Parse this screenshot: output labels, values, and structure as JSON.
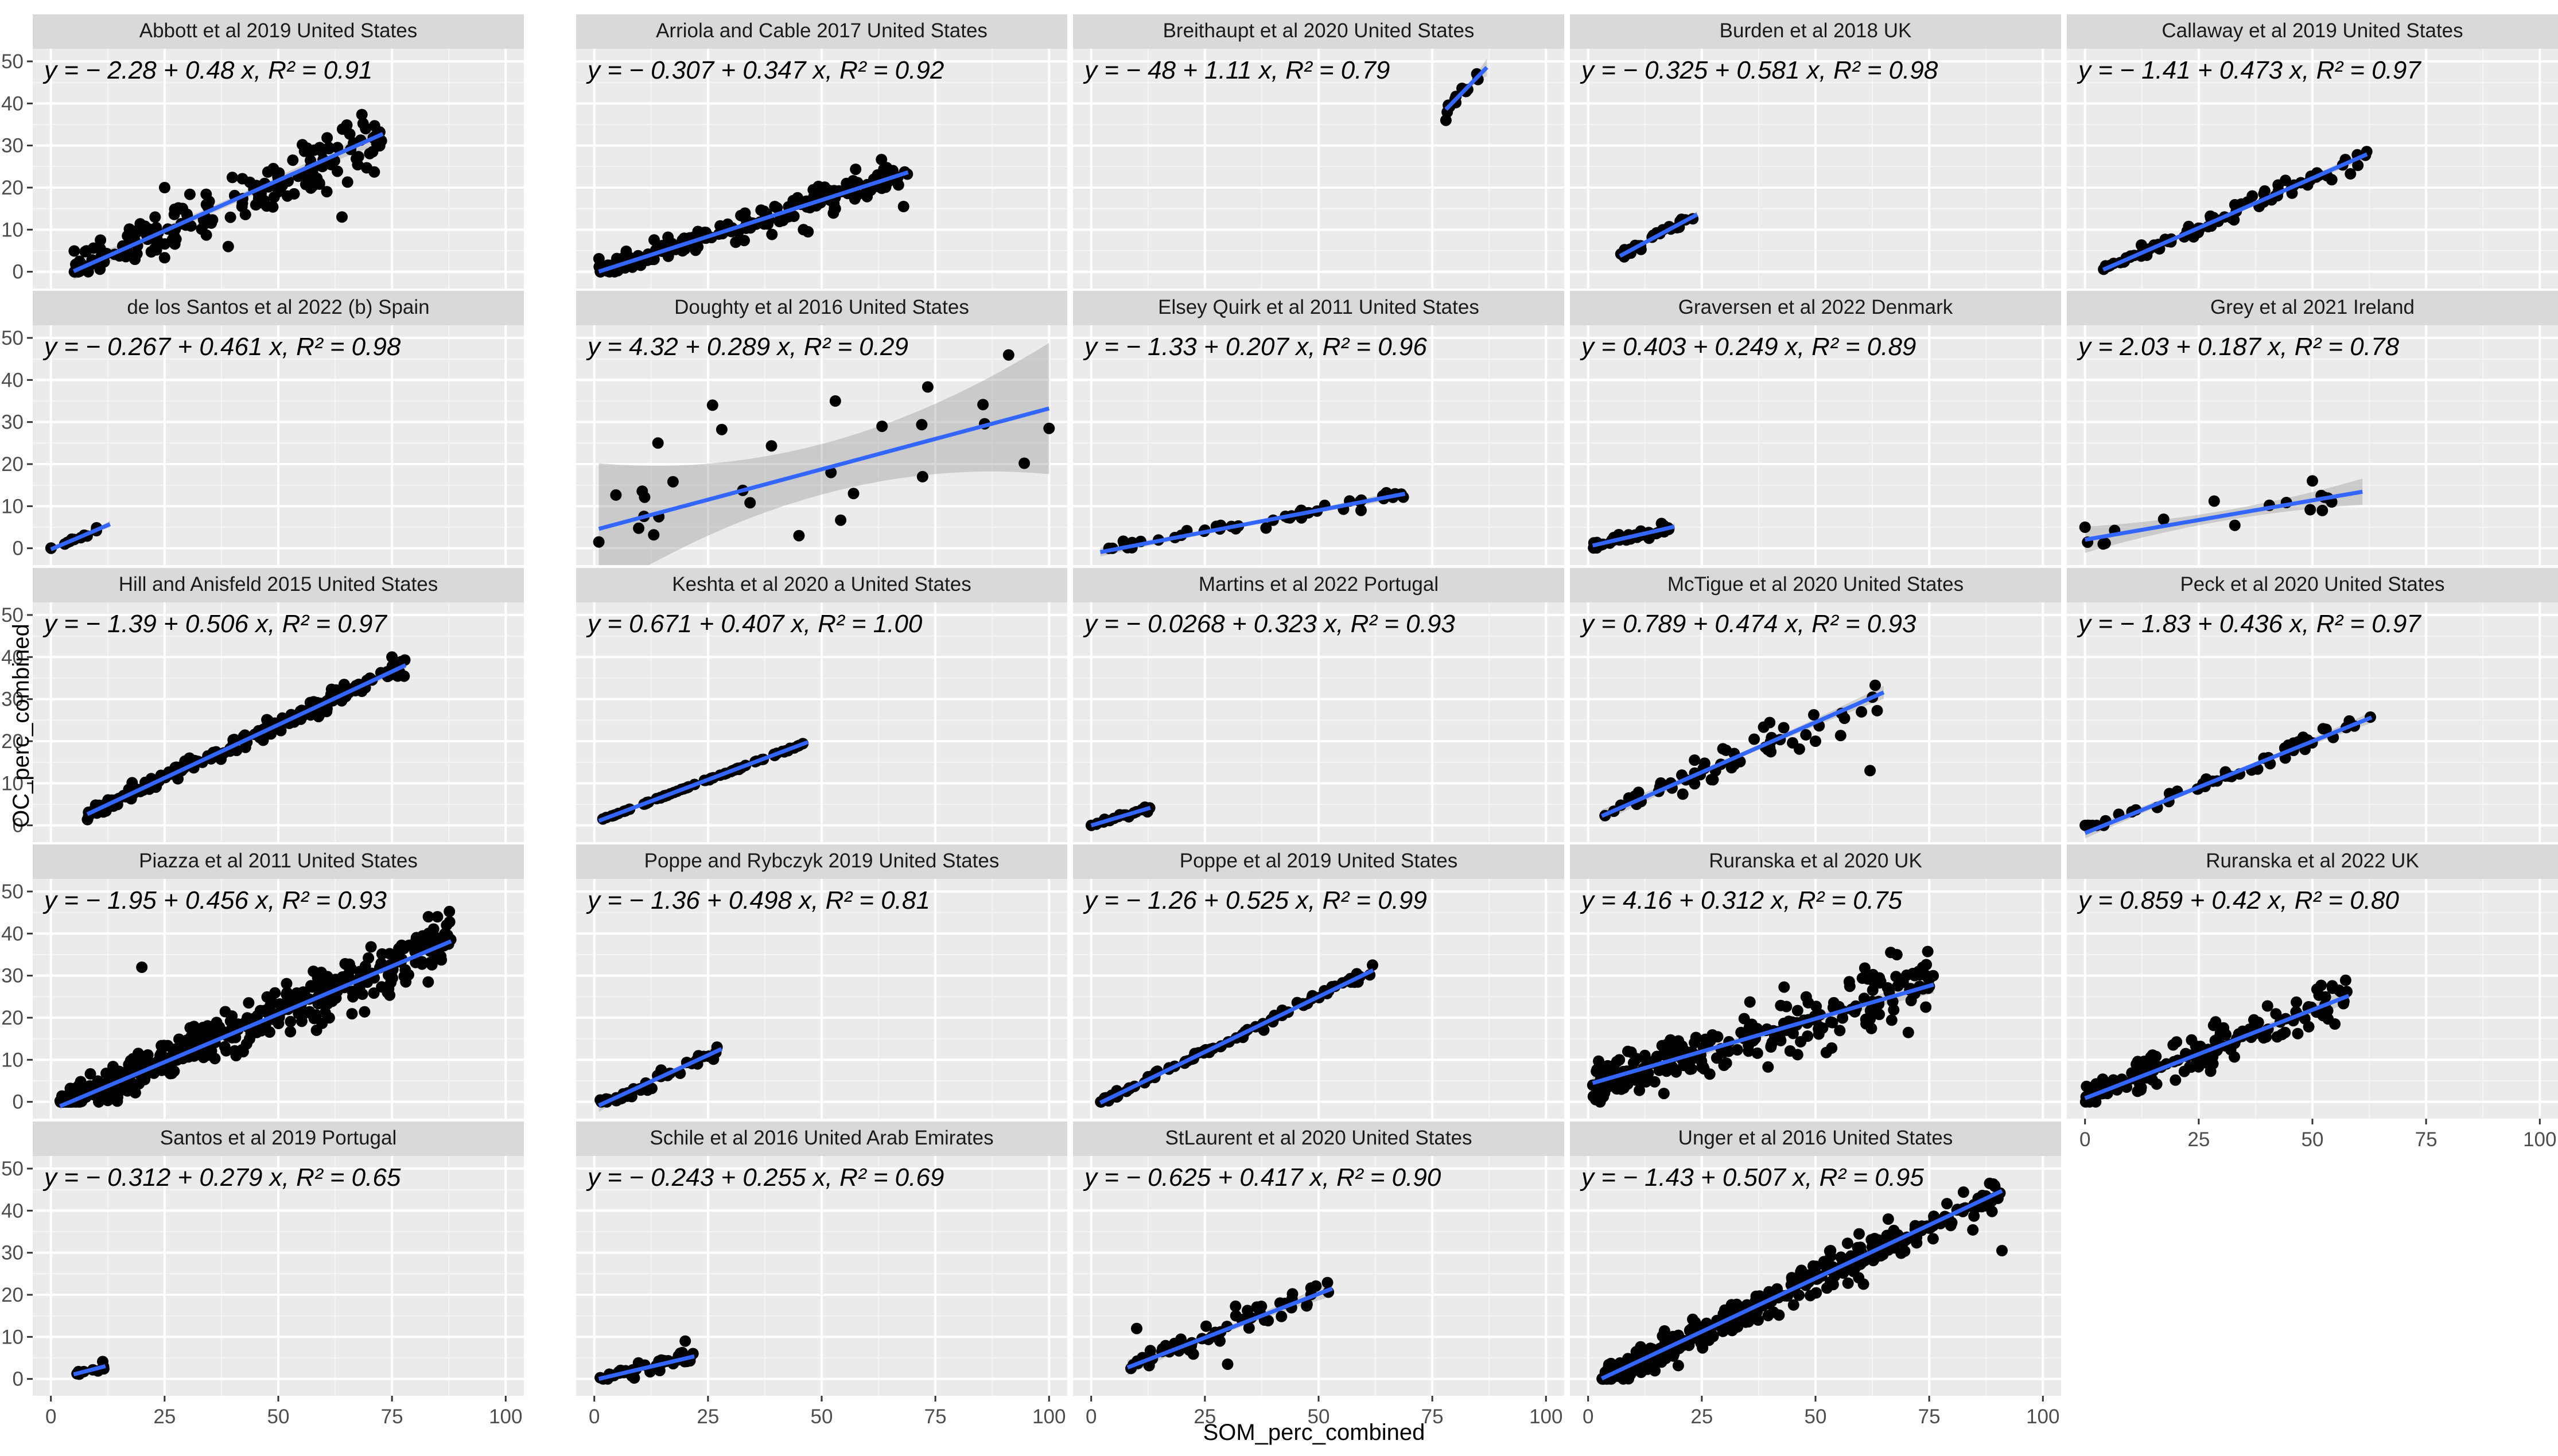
{
  "chart_data": {
    "type": "scatter",
    "xlabel": "SOM_perc_combined",
    "ylabel": "OC_perc_combined",
    "xlim": [
      -4,
      104
    ],
    "ylim": [
      -4,
      53
    ],
    "x_ticks": [
      0,
      25,
      50,
      75,
      100
    ],
    "y_ticks": [
      0,
      10,
      20,
      30,
      40,
      50
    ],
    "grid": true,
    "colors": {
      "panel": "#EBEBEB",
      "strip": "#D9D9D9",
      "grid_major": "#FFFFFF",
      "grid_minor": "#F5F5F5",
      "points": "#000000",
      "fit_line": "#3366FF",
      "ribbon": "#999999"
    },
    "panels": [
      {
        "title": "Abbott et al 2019 United States",
        "equation": "y = − 2.28 + 0.48 x, R² = 0.91",
        "intercept": -2.28,
        "slope": 0.48,
        "r2": 0.91,
        "x_range": [
          5,
          73
        ],
        "n_points": 180,
        "noise": 2.8,
        "band": 0.8,
        "outliers": [
          [
            47,
            21
          ],
          [
            64,
            13
          ],
          [
            39,
            6
          ],
          [
            52,
            18
          ],
          [
            22,
            8
          ],
          [
            25,
            20
          ]
        ]
      },
      {
        "title": "Arriola and Cable 2017 United States",
        "equation": "y = − 0.307 + 0.347 x, R² = 0.92",
        "intercept": -0.307,
        "slope": 0.347,
        "r2": 0.92,
        "x_range": [
          1,
          69
        ],
        "n_points": 180,
        "noise": 1.4,
        "band": 0.5,
        "outliers": [
          [
            68,
            15.5
          ],
          [
            53,
            15
          ],
          [
            46,
            10
          ],
          [
            47,
            9.5
          ]
        ]
      },
      {
        "title": "Breithaupt et al 2020 United States",
        "equation": "y = − 48 + 1.11 x, R² = 0.79",
        "intercept": -48,
        "slope": 1.11,
        "r2": 0.79,
        "x_range": [
          78,
          87
        ],
        "n_points": 10,
        "noise": 1.2,
        "band": 0.8,
        "outliers": [
          [
            78,
            36
          ],
          [
            80,
            41
          ]
        ]
      },
      {
        "title": "Burden et al 2018 UK",
        "equation": "y = − 0.325 + 0.581 x, R² = 0.98",
        "intercept": -0.325,
        "slope": 0.581,
        "r2": 0.98,
        "x_range": [
          7,
          24
        ],
        "n_points": 25,
        "noise": 0.5,
        "band": 0.3,
        "outliers": []
      },
      {
        "title": "Callaway et al 2019 United States",
        "equation": "y = − 1.41 + 0.473 x, R² = 0.97",
        "intercept": -1.41,
        "slope": 0.473,
        "r2": 0.97,
        "x_range": [
          4,
          62
        ],
        "n_points": 90,
        "noise": 0.9,
        "band": 0.4,
        "outliers": []
      },
      {
        "title": "de los Santos et al 2022 (b) Spain",
        "equation": "y = − 0.267 + 0.461 x, R² = 0.98",
        "intercept": -0.267,
        "slope": 0.461,
        "r2": 0.98,
        "x_range": [
          0,
          13
        ],
        "n_points": 15,
        "noise": 0.3,
        "band": 0.3,
        "outliers": []
      },
      {
        "title": "Doughty et al 2016 United States",
        "equation": "y = 4.32 + 0.289 x, R² = 0.29",
        "intercept": 4.32,
        "slope": 0.289,
        "r2": 0.29,
        "x_range": [
          1,
          100
        ],
        "n_points": 22,
        "noise": 8,
        "band": 6,
        "outliers": [
          [
            26,
            34
          ],
          [
            53,
            35
          ],
          [
            100,
            28.5
          ],
          [
            14,
            25
          ],
          [
            57,
            13
          ],
          [
            1,
            1.5
          ],
          [
            45,
            3
          ]
        ]
      },
      {
        "title": "Elsey Quirk et al 2011 United States",
        "equation": "y = − 1.33 + 0.207 x, R² = 0.96",
        "intercept": -1.33,
        "slope": 0.207,
        "r2": 0.96,
        "x_range": [
          2,
          69
        ],
        "n_points": 50,
        "noise": 0.6,
        "band": 0.4,
        "outliers": []
      },
      {
        "title": "Graversen et al 2022 Denmark",
        "equation": "y = 0.403 + 0.249 x, R² = 0.89",
        "intercept": 0.403,
        "slope": 0.249,
        "r2": 0.89,
        "x_range": [
          1,
          19
        ],
        "n_points": 40,
        "noise": 0.5,
        "band": 0.3,
        "outliers": []
      },
      {
        "title": "Grey et al 2021 Ireland",
        "equation": "y = 2.03 + 0.187 x, R² = 0.78",
        "intercept": 2.03,
        "slope": 0.187,
        "r2": 0.78,
        "x_range": [
          0,
          61
        ],
        "n_points": 14,
        "noise": 1.5,
        "band": 1.2,
        "outliers": [
          [
            50,
            16
          ],
          [
            0,
            5
          ],
          [
            4,
            1
          ]
        ]
      },
      {
        "title": "Hill and Anisfeld 2015 United States",
        "equation": "y = − 1.39 + 0.506 x, R² = 0.97",
        "intercept": -1.39,
        "slope": 0.506,
        "r2": 0.97,
        "x_range": [
          8,
          78
        ],
        "n_points": 200,
        "noise": 0.9,
        "band": 0.4,
        "outliers": [
          [
            75,
            40
          ]
        ]
      },
      {
        "title": "Keshta et al 2020 a United States",
        "equation": "y = 0.671 + 0.407 x, R² = 1.00",
        "intercept": 0.671,
        "slope": 0.407,
        "r2": 1.0,
        "x_range": [
          1,
          47
        ],
        "n_points": 70,
        "noise": 0.1,
        "band": 0.2,
        "outliers": []
      },
      {
        "title": "Martins et al 2022 Portugal",
        "equation": "y = − 0.0268 + 0.323 x, R² = 0.93",
        "intercept": -0.0268,
        "slope": 0.323,
        "r2": 0.93,
        "x_range": [
          0,
          13
        ],
        "n_points": 25,
        "noise": 0.3,
        "band": 0.3,
        "outliers": []
      },
      {
        "title": "McTigue et al 2020 United States",
        "equation": "y = 0.789 + 0.474 x, R² = 0.93",
        "intercept": 0.789,
        "slope": 0.474,
        "r2": 0.93,
        "x_range": [
          3,
          65
        ],
        "n_points": 60,
        "noise": 1.8,
        "band": 0.6,
        "outliers": [
          [
            62,
            13
          ],
          [
            50,
            20
          ]
        ]
      },
      {
        "title": "Peck et al 2020 United States",
        "equation": "y = − 1.83 + 0.436 x, R² = 0.97",
        "intercept": -1.83,
        "slope": 0.436,
        "r2": 0.97,
        "x_range": [
          0,
          63
        ],
        "n_points": 55,
        "noise": 0.9,
        "band": 0.5,
        "outliers": []
      },
      {
        "title": "Piazza et al 2011 United States",
        "equation": "y = − 1.95 + 0.456 x, R² = 0.93",
        "intercept": -1.95,
        "slope": 0.456,
        "r2": 0.93,
        "x_range": [
          2,
          88
        ],
        "n_points": 420,
        "noise": 2.6,
        "band": 0.3,
        "outliers": [
          [
            20,
            32
          ],
          [
            83,
            44
          ],
          [
            87,
            42
          ],
          [
            85,
            44
          ]
        ]
      },
      {
        "title": "Poppe and Rybczyk 2019 United States",
        "equation": "y = − 1.36 + 0.498 x, R² = 0.81",
        "intercept": -1.36,
        "slope": 0.498,
        "r2": 0.81,
        "x_range": [
          1,
          28
        ],
        "n_points": 40,
        "noise": 0.8,
        "band": 0.6,
        "outliers": []
      },
      {
        "title": "Poppe et al 2019 United States",
        "equation": "y = − 1.26 + 0.525 x, R² = 0.99",
        "intercept": -1.26,
        "slope": 0.525,
        "r2": 0.99,
        "x_range": [
          2,
          62
        ],
        "n_points": 90,
        "noise": 0.5,
        "band": 0.3,
        "outliers": []
      },
      {
        "title": "Ruranska et al 2020 UK",
        "equation": "y = 4.16 + 0.312 x, R² = 0.75",
        "intercept": 4.16,
        "slope": 0.312,
        "r2": 0.75,
        "x_range": [
          1,
          76
        ],
        "n_points": 260,
        "noise": 3.3,
        "band": 0.8,
        "outliers": []
      },
      {
        "title": "Ruranska et al 2022 UK",
        "equation": "y = 0.859 + 0.42 x, R² = 0.80",
        "intercept": 0.859,
        "slope": 0.42,
        "r2": 0.8,
        "x_range": [
          0,
          58
        ],
        "n_points": 160,
        "noise": 2.4,
        "band": 0.7,
        "outliers": []
      },
      {
        "title": "Santos et al 2019 Portugal",
        "equation": "y = − 0.312 + 0.279 x, R² = 0.65",
        "intercept": -0.312,
        "slope": 0.279,
        "r2": 0.65,
        "x_range": [
          5,
          12
        ],
        "n_points": 9,
        "noise": 0.4,
        "band": 0.4,
        "outliers": []
      },
      {
        "title": "Schile et al 2016 United Arab Emirates",
        "equation": "y = − 0.243 + 0.255 x, R² = 0.69",
        "intercept": -0.243,
        "slope": 0.255,
        "r2": 0.69,
        "x_range": [
          1,
          22
        ],
        "n_points": 50,
        "noise": 0.6,
        "band": 0.5,
        "outliers": [
          [
            20,
            9
          ]
        ]
      },
      {
        "title": "StLaurent et al 2020 United States",
        "equation": "y = − 0.625 + 0.417 x, R² = 0.90",
        "intercept": -0.625,
        "slope": 0.417,
        "r2": 0.9,
        "x_range": [
          8,
          53
        ],
        "n_points": 60,
        "noise": 1.4,
        "band": 0.7,
        "outliers": [
          [
            10,
            12
          ],
          [
            30,
            3.5
          ]
        ]
      },
      {
        "title": "Unger et al 2016 United States",
        "equation": "y = − 1.43 + 0.507 x, R² = 0.95",
        "intercept": -1.43,
        "slope": 0.507,
        "r2": 0.95,
        "x_range": [
          3,
          91
        ],
        "n_points": 400,
        "noise": 1.8,
        "band": 0.3,
        "outliers": [
          [
            91,
            30.5
          ],
          [
            66,
            38
          ]
        ]
      }
    ]
  }
}
